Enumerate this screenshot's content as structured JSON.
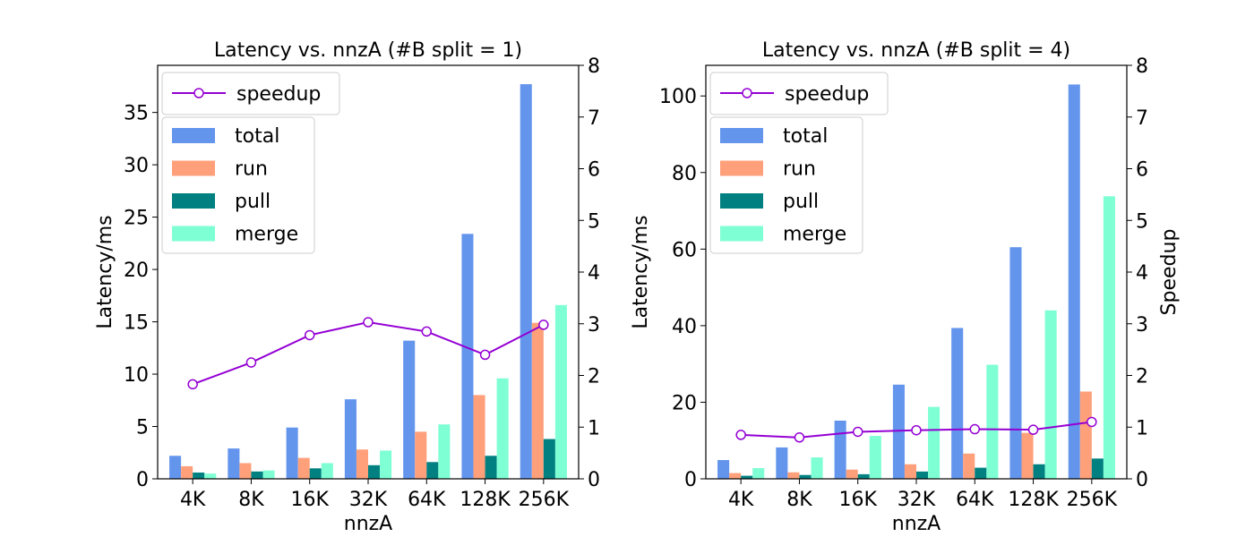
{
  "chart_data": [
    {
      "type": "bar",
      "title": "Latency vs. nnzA (#B split = 1)",
      "xlabel": "nnzA",
      "ylabel": "Latency/ms",
      "y2label": "",
      "categories": [
        "4K",
        "8K",
        "16K",
        "32K",
        "64K",
        "128K",
        "256K"
      ],
      "ylim": [
        0,
        39.5
      ],
      "yticks": [
        0,
        5,
        10,
        15,
        20,
        25,
        30,
        35
      ],
      "y2lim": [
        0,
        8
      ],
      "y2ticks": [
        0,
        1,
        2,
        3,
        4,
        5,
        6,
        7,
        8
      ],
      "series": [
        {
          "name": "total",
          "color": "#6495ED",
          "values": [
            2.2,
            2.9,
            4.9,
            7.6,
            13.2,
            23.4,
            37.7
          ]
        },
        {
          "name": "run",
          "color": "#FFA07A",
          "values": [
            1.2,
            1.5,
            2.0,
            2.8,
            4.5,
            8.0,
            14.9
          ]
        },
        {
          "name": "pull",
          "color": "#008080",
          "values": [
            0.6,
            0.7,
            1.0,
            1.3,
            1.6,
            2.2,
            3.8
          ]
        },
        {
          "name": "merge",
          "color": "#7FFFD4",
          "values": [
            0.5,
            0.8,
            1.5,
            2.7,
            5.2,
            9.6,
            16.6
          ]
        }
      ],
      "line_series": {
        "name": "speedup",
        "color": "#9400D3",
        "values": [
          1.83,
          2.25,
          2.78,
          3.03,
          2.85,
          2.4,
          2.98
        ]
      },
      "legend": "upper-left"
    },
    {
      "type": "bar",
      "title": "Latency vs. nnzA (#B split = 4)",
      "xlabel": "nnzA",
      "ylabel": "Latency/ms",
      "y2label": "Speedup",
      "categories": [
        "4K",
        "8K",
        "16K",
        "32K",
        "64K",
        "128K",
        "256K"
      ],
      "ylim": [
        0,
        108
      ],
      "yticks": [
        0,
        20,
        40,
        60,
        80,
        100
      ],
      "y2lim": [
        0,
        8
      ],
      "y2ticks": [
        0,
        1,
        2,
        3,
        4,
        5,
        6,
        7,
        8
      ],
      "series": [
        {
          "name": "total",
          "color": "#6495ED",
          "values": [
            4.9,
            8.2,
            15.2,
            24.6,
            39.4,
            60.5,
            103.0
          ]
        },
        {
          "name": "run",
          "color": "#FFA07A",
          "values": [
            1.5,
            1.7,
            2.4,
            3.8,
            6.6,
            12.0,
            22.8
          ]
        },
        {
          "name": "pull",
          "color": "#008080",
          "values": [
            0.8,
            1.0,
            1.2,
            1.9,
            2.9,
            3.8,
            5.3
          ]
        },
        {
          "name": "merge",
          "color": "#7FFFD4",
          "values": [
            2.8,
            5.6,
            11.2,
            18.8,
            29.8,
            44.0,
            73.8
          ]
        }
      ],
      "line_series": {
        "name": "speedup",
        "color": "#9400D3",
        "values": [
          0.85,
          0.8,
          0.91,
          0.94,
          0.96,
          0.95,
          1.1
        ]
      },
      "legend": "upper-left"
    }
  ]
}
